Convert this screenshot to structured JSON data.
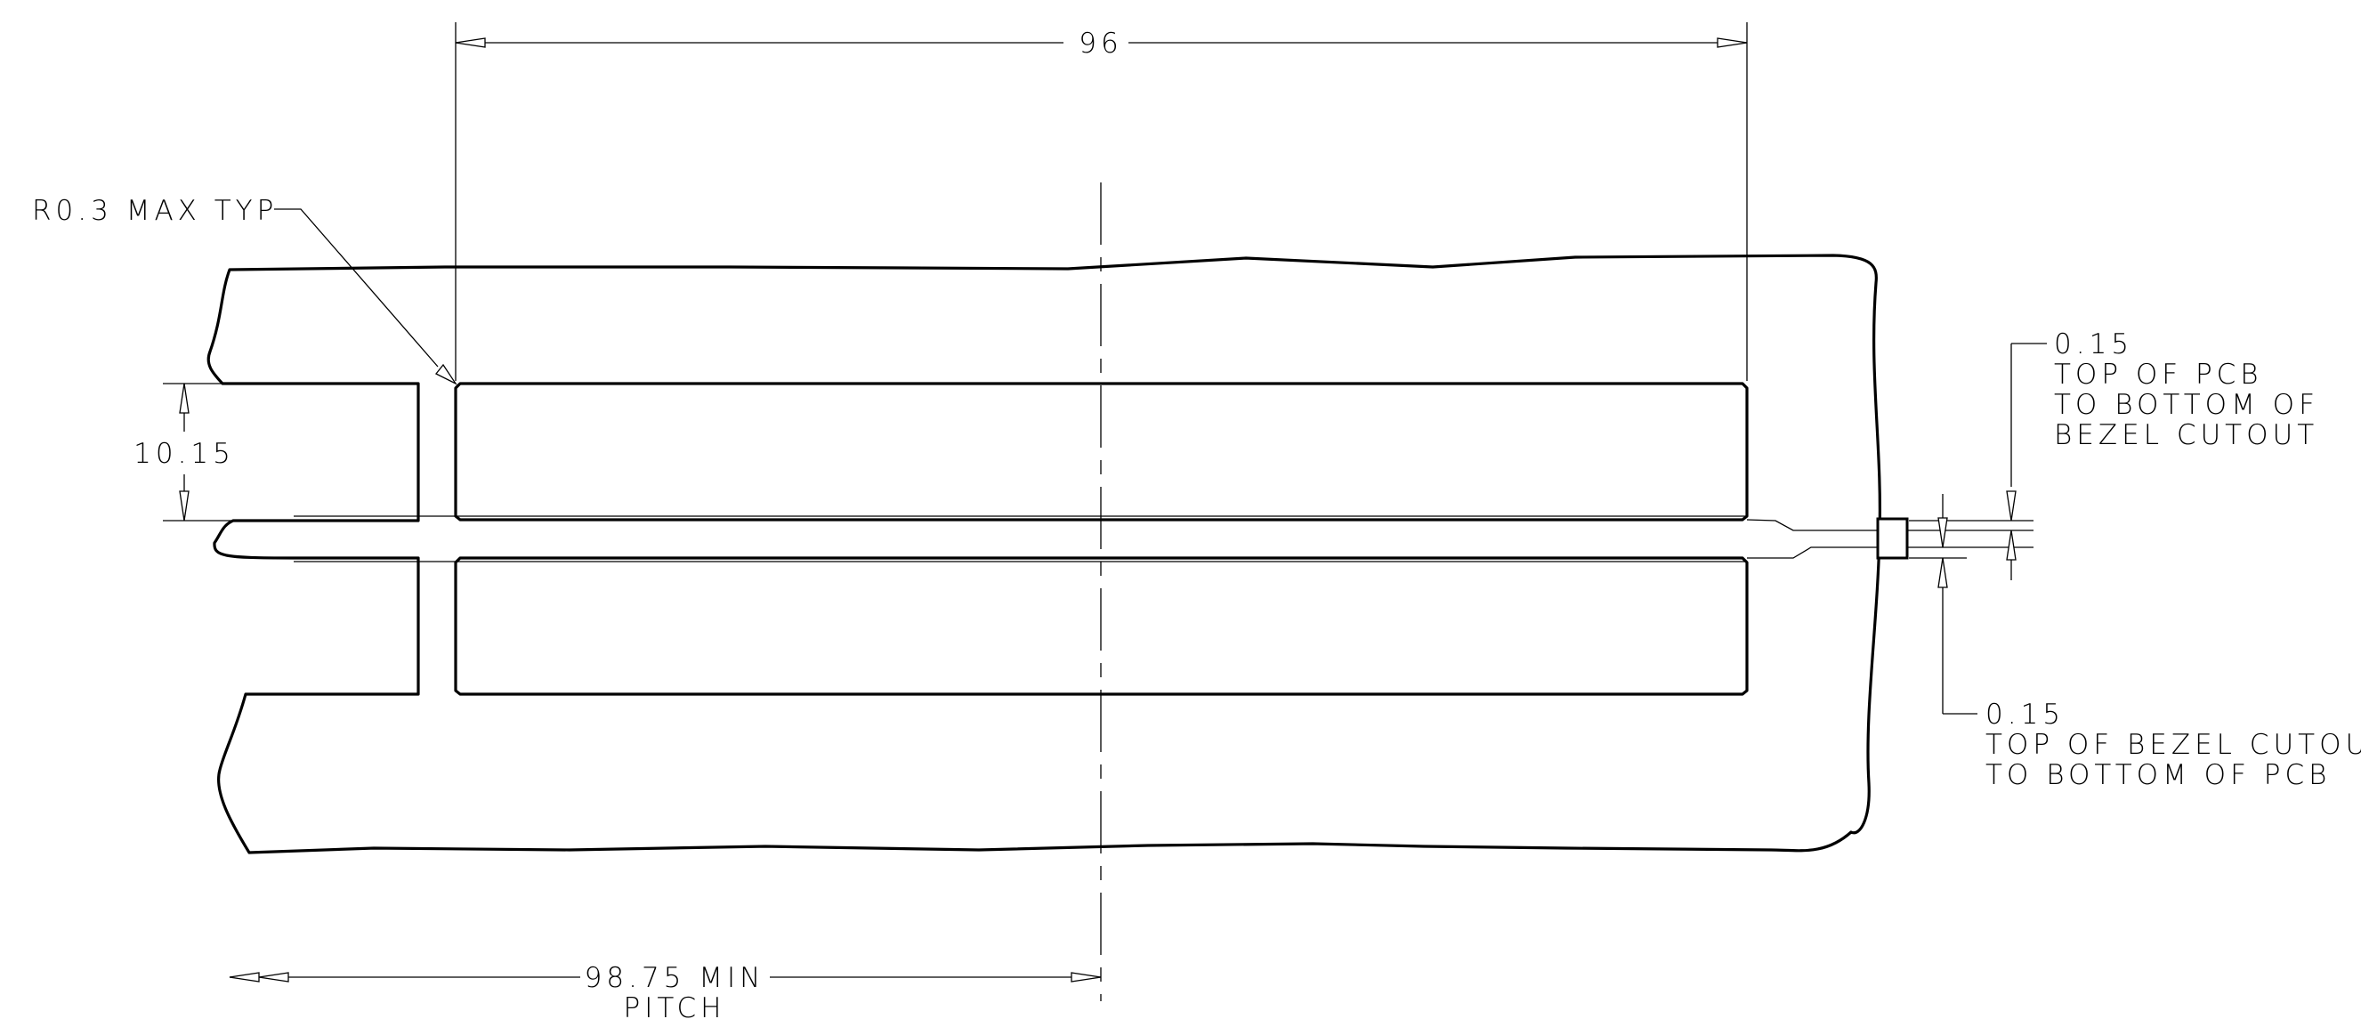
{
  "drawing": {
    "dim_width": "96",
    "dim_slot_height": "10.15",
    "note_radius": "R0.3 MAX TYP",
    "dim_pitch_lines": [
      "98.75 MIN",
      "PITCH"
    ],
    "dim_top_offset_lines": [
      "0.15",
      "TOP OF PCB",
      "TO BOTTOM OF",
      "BEZEL CUTOUT"
    ],
    "dim_bottom_offset_lines": [
      "0.15",
      "TOP OF BEZEL CUTOUT",
      "TO BOTTOM OF PCB"
    ]
  }
}
